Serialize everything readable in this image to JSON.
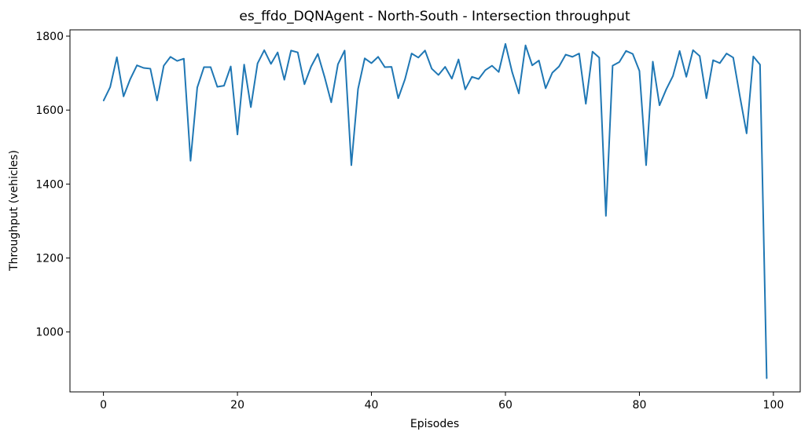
{
  "chart_data": {
    "type": "line",
    "title": "es_ffdo_DQNAgent - North-South - Intersection throughput",
    "xlabel": "Episodes",
    "ylabel": "Throughput (vehicles)",
    "xlim": [
      -5,
      104
    ],
    "ylim": [
      838,
      1817
    ],
    "xticks": [
      0,
      20,
      40,
      60,
      80,
      100
    ],
    "yticks": [
      1000,
      1200,
      1400,
      1600,
      1800
    ],
    "grid": false,
    "line_color": "#1f77b4",
    "series": [
      {
        "x": [
          0,
          1,
          2,
          3,
          4,
          5,
          6,
          7,
          8,
          9,
          10,
          11,
          12,
          13,
          14,
          15,
          16,
          17,
          18,
          19,
          20,
          21,
          22,
          23,
          24,
          25,
          26,
          27,
          28,
          29,
          30,
          31,
          32,
          33,
          34,
          35,
          36,
          37,
          38,
          39,
          40,
          41,
          42,
          43,
          44,
          45,
          46,
          47,
          48,
          49,
          50,
          51,
          52,
          53,
          54,
          55,
          56,
          57,
          58,
          59,
          60,
          61,
          62,
          63,
          64,
          65,
          66,
          67,
          68,
          69,
          70,
          71,
          72,
          73,
          74,
          75,
          76,
          77,
          78,
          79,
          80,
          81,
          82,
          83,
          84,
          85,
          86,
          87,
          88,
          89,
          90,
          91,
          92,
          93,
          94,
          95,
          96,
          97,
          98,
          99
        ],
        "values": [
          1625,
          1662,
          1743,
          1637,
          1684,
          1721,
          1714,
          1712,
          1626,
          1720,
          1744,
          1733,
          1739,
          1463,
          1661,
          1716,
          1716,
          1663,
          1666,
          1718,
          1534,
          1723,
          1608,
          1726,
          1762,
          1725,
          1756,
          1682,
          1761,
          1756,
          1670,
          1718,
          1752,
          1690,
          1621,
          1724,
          1761,
          1451,
          1657,
          1740,
          1727,
          1744,
          1716,
          1717,
          1632,
          1683,
          1753,
          1742,
          1761,
          1712,
          1695,
          1717,
          1685,
          1737,
          1656,
          1690,
          1684,
          1708,
          1720,
          1703,
          1779,
          1703,
          1645,
          1775,
          1721,
          1734,
          1659,
          1701,
          1718,
          1750,
          1744,
          1753,
          1617,
          1758,
          1742,
          1314,
          1720,
          1730,
          1760,
          1752,
          1706,
          1451,
          1731,
          1613,
          1656,
          1692,
          1760,
          1690,
          1762,
          1746,
          1632,
          1735,
          1727,
          1753,
          1742,
          1637,
          1537,
          1745,
          1723,
          874
        ]
      }
    ]
  }
}
